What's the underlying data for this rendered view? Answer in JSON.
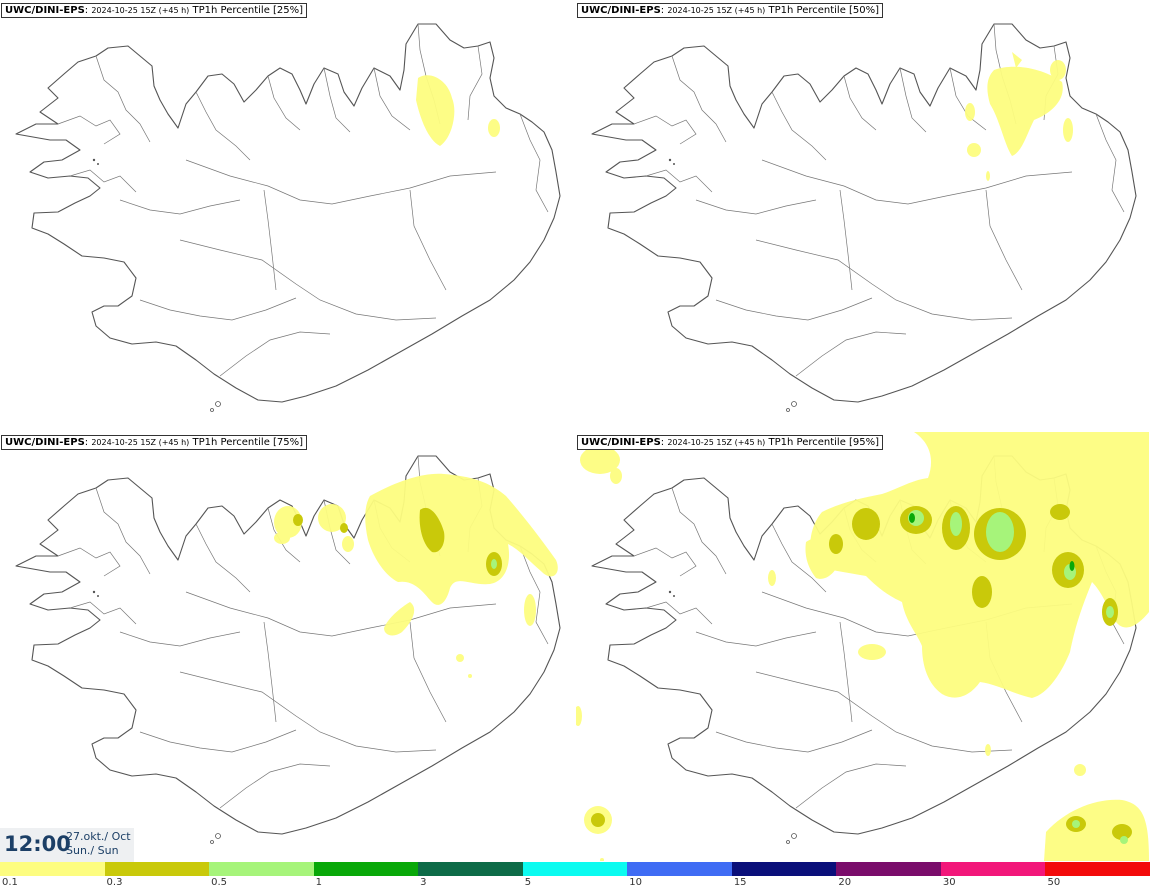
{
  "panels": [
    {
      "model": "UWC/DINI-EPS",
      "run": "2024-10-25 15Z (+45 h)",
      "field": "TP1h Percentile [25%]"
    },
    {
      "model": "UWC/DINI-EPS",
      "run": "2024-10-25 15Z (+45 h)",
      "field": "TP1h Percentile [50%]"
    },
    {
      "model": "UWC/DINI-EPS",
      "run": "2024-10-25 15Z (+45 h)",
      "field": "TP1h Percentile [75%]"
    },
    {
      "model": "UWC/DINI-EPS",
      "run": "2024-10-25 15Z (+45 h)",
      "field": "TP1h Percentile [95%]"
    }
  ],
  "valid_time": {
    "clock": "12:00",
    "date": "27.okt./ Oct",
    "weekday": "Sun./ Sun"
  },
  "legend": {
    "ticks": [
      "0.1",
      "0.3",
      "0.5",
      "1",
      "3",
      "5",
      "10",
      "15",
      "20",
      "30",
      "50"
    ],
    "colors": [
      "#fdfd80",
      "#c9c90a",
      "#a6f47a",
      "#08a808",
      "#0d6b47",
      "#0bfbf0",
      "#3f6cf4",
      "#0a0f7a",
      "#7a0c6b",
      "#f2177a",
      "#f30b0b"
    ]
  },
  "colors": {
    "coast": "#555555",
    "background": "#ffffff",
    "title_text": "#1c3f66"
  }
}
